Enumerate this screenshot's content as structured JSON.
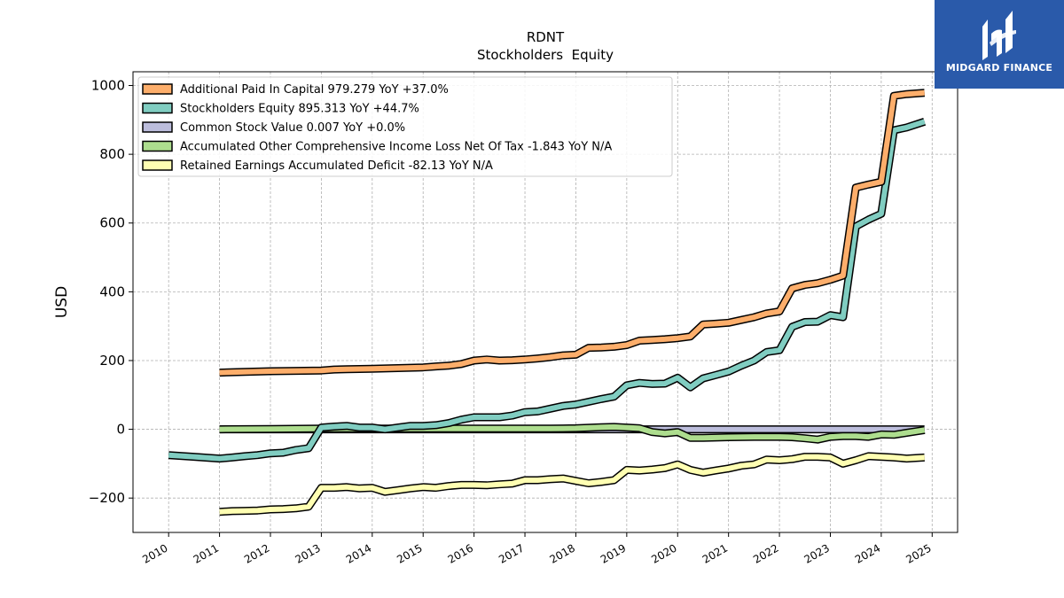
{
  "chart_data": {
    "type": "line",
    "title": "RDNT",
    "subtitle": "Stockholders  Equity",
    "ylabel": "USD",
    "xlabel": "",
    "xlim": [
      2009.3,
      2025.5
    ],
    "ylim": [
      -300,
      1040
    ],
    "yticks": [
      -200,
      0,
      200,
      400,
      600,
      800,
      1000
    ],
    "xticks": [
      "2010",
      "2011",
      "2012",
      "2013",
      "2014",
      "2015",
      "2016",
      "2017",
      "2018",
      "2019",
      "2020",
      "2021",
      "2022",
      "2023",
      "2024",
      "2025"
    ],
    "grid": true,
    "legend_position": "upper-left",
    "series": [
      {
        "name": "Additional Paid In Capital  979.279 YoY +37.0%",
        "color": "#fdae6b",
        "x": [
          2011.0,
          2011.5,
          2012.0,
          2012.5,
          2013.0,
          2013.25,
          2013.5,
          2014.0,
          2014.5,
          2015.0,
          2015.25,
          2015.5,
          2015.75,
          2016.0,
          2016.25,
          2016.5,
          2016.75,
          2017.0,
          2017.25,
          2017.5,
          2017.75,
          2018.0,
          2018.25,
          2018.5,
          2018.75,
          2019.0,
          2019.25,
          2019.5,
          2019.75,
          2020.0,
          2020.25,
          2020.5,
          2020.75,
          2021.0,
          2021.25,
          2021.5,
          2021.75,
          2022.0,
          2022.25,
          2022.5,
          2022.75,
          2023.0,
          2023.25,
          2023.5,
          2023.75,
          2024.0,
          2024.25,
          2024.5,
          2024.85
        ],
        "values": [
          165,
          167,
          169,
          170,
          171,
          174,
          175,
          176,
          178,
          180,
          183,
          185,
          190,
          200,
          203,
          200,
          201,
          203,
          206,
          210,
          215,
          217,
          237,
          238,
          240,
          245,
          258,
          260,
          262,
          265,
          270,
          305,
          307,
          310,
          318,
          326,
          337,
          343,
          410,
          420,
          425,
          435,
          447,
          703,
          712,
          720,
          970,
          975,
          979
        ]
      },
      {
        "name": "Stockholders Equity  895.313 YoY +44.7%",
        "color": "#80cdc1",
        "x": [
          2010.0,
          2010.5,
          2011.0,
          2011.25,
          2011.5,
          2011.75,
          2012.0,
          2012.25,
          2012.5,
          2012.75,
          2013.0,
          2013.25,
          2013.5,
          2013.75,
          2014.0,
          2014.25,
          2014.5,
          2014.75,
          2015.0,
          2015.25,
          2015.5,
          2015.75,
          2016.0,
          2016.25,
          2016.5,
          2016.75,
          2017.0,
          2017.25,
          2017.5,
          2017.75,
          2018.0,
          2018.25,
          2018.5,
          2018.75,
          2019.0,
          2019.25,
          2019.5,
          2019.75,
          2020.0,
          2020.25,
          2020.5,
          2020.75,
          2021.0,
          2021.25,
          2021.5,
          2021.75,
          2022.0,
          2022.25,
          2022.5,
          2022.75,
          2023.0,
          2023.25,
          2023.5,
          2023.75,
          2024.0,
          2024.25,
          2024.5,
          2024.85
        ],
        "values": [
          -75,
          -80,
          -85,
          -82,
          -78,
          -75,
          -70,
          -68,
          -60,
          -55,
          5,
          8,
          10,
          5,
          5,
          0,
          5,
          10,
          10,
          12,
          18,
          28,
          35,
          35,
          35,
          40,
          50,
          52,
          60,
          68,
          72,
          80,
          88,
          95,
          128,
          135,
          132,
          133,
          150,
          122,
          148,
          158,
          168,
          185,
          200,
          225,
          230,
          298,
          312,
          313,
          332,
          326,
          590,
          610,
          627,
          870,
          878,
          895
        ]
      },
      {
        "name": "Common Stock Value  0.007 YoY +0.0%",
        "color": "#bcbddc",
        "x": [
          2011.0,
          2013.0,
          2016.0,
          2019.0,
          2020.0,
          2022.0,
          2024.85
        ],
        "values": [
          0.007,
          0.007,
          0.007,
          0.007,
          0.007,
          0.007,
          0.007
        ]
      },
      {
        "name": "Accumulated Other Comprehensive Income Loss Net Of Tax  -1.843 YoY N/A",
        "color": "#addd8e",
        "x": [
          2011.0,
          2012.0,
          2013.0,
          2014.0,
          2015.0,
          2016.0,
          2017.0,
          2017.5,
          2018.0,
          2018.5,
          2018.75,
          2019.0,
          2019.25,
          2019.5,
          2019.75,
          2020.0,
          2020.25,
          2020.5,
          2020.75,
          2021.0,
          2021.5,
          2022.0,
          2022.25,
          2022.5,
          2022.75,
          2023.0,
          2023.25,
          2023.5,
          2023.75,
          2024.0,
          2024.25,
          2024.5,
          2024.85
        ],
        "values": [
          0,
          1,
          2,
          2,
          2,
          2,
          2,
          2,
          3,
          6,
          7,
          5,
          3,
          -8,
          -12,
          -8,
          -25,
          -25,
          -24,
          -23,
          -22,
          -22,
          -23,
          -26,
          -30,
          -22,
          -20,
          -20,
          -22,
          -15,
          -16,
          -10,
          -2
        ]
      },
      {
        "name": "Retained Earnings Accumulated Deficit  -82.13 YoY N/A",
        "color": "#ffffb2",
        "x": [
          2011.0,
          2011.25,
          2011.5,
          2011.75,
          2012.0,
          2012.25,
          2012.5,
          2012.75,
          2013.0,
          2013.25,
          2013.5,
          2013.75,
          2014.0,
          2014.25,
          2014.5,
          2014.75,
          2015.0,
          2015.25,
          2015.5,
          2015.75,
          2016.0,
          2016.25,
          2016.5,
          2016.75,
          2017.0,
          2017.25,
          2017.5,
          2017.75,
          2018.0,
          2018.25,
          2018.5,
          2018.75,
          2019.0,
          2019.25,
          2019.5,
          2019.75,
          2020.0,
          2020.25,
          2020.5,
          2020.75,
          2021.0,
          2021.25,
          2021.5,
          2021.75,
          2022.0,
          2022.25,
          2022.5,
          2022.75,
          2023.0,
          2023.25,
          2023.5,
          2023.75,
          2024.0,
          2024.25,
          2024.5,
          2024.85
        ],
        "values": [
          -240,
          -238,
          -237,
          -236,
          -233,
          -232,
          -230,
          -225,
          -170,
          -170,
          -168,
          -172,
          -170,
          -182,
          -177,
          -172,
          -168,
          -170,
          -165,
          -162,
          -162,
          -163,
          -160,
          -158,
          -148,
          -148,
          -145,
          -143,
          -150,
          -157,
          -153,
          -148,
          -118,
          -120,
          -117,
          -113,
          -102,
          -118,
          -126,
          -120,
          -114,
          -106,
          -102,
          -88,
          -90,
          -87,
          -80,
          -80,
          -82,
          -100,
          -90,
          -78,
          -80,
          -82,
          -85,
          -82
        ]
      }
    ]
  },
  "logo": {
    "text": "MIDGARD FINANCE"
  }
}
